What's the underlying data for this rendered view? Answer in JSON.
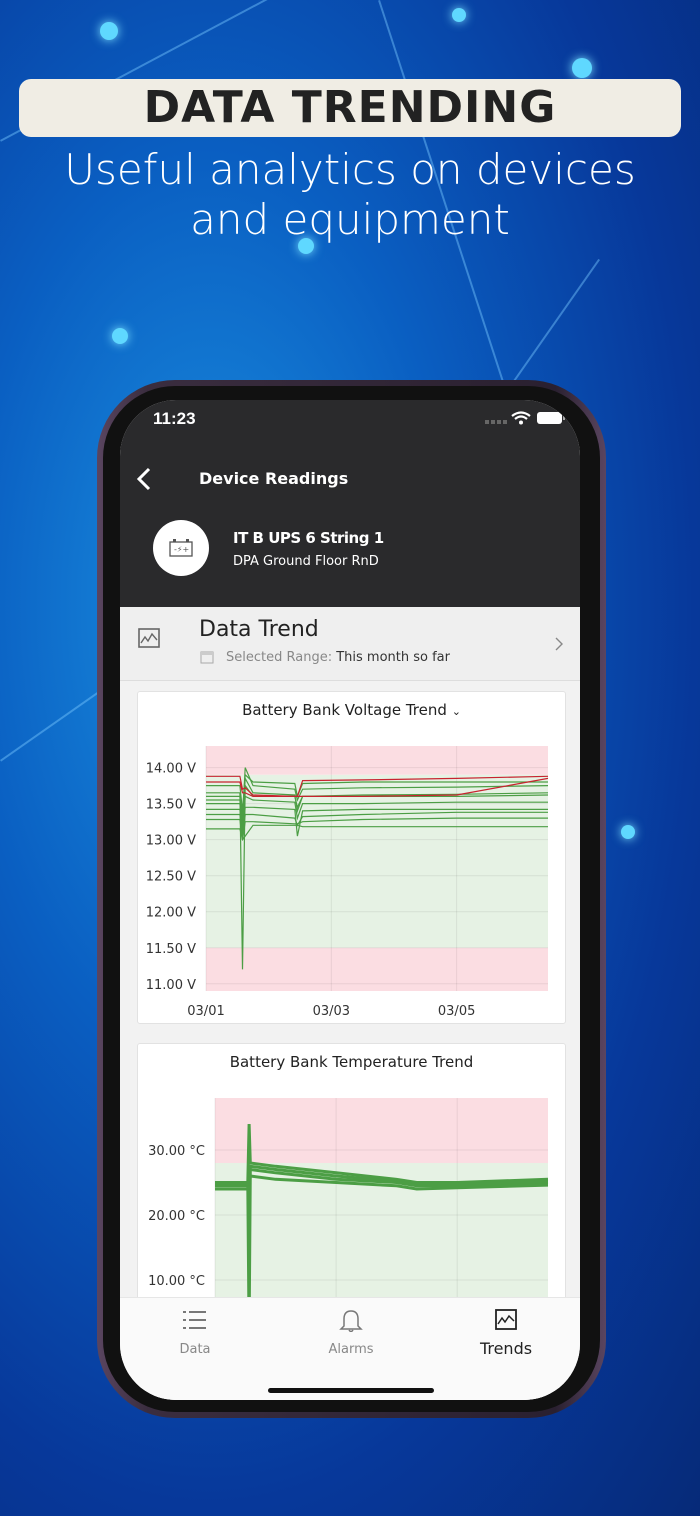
{
  "promo": {
    "headline": "DATA TRENDING",
    "subtitle_line1": "Useful analytics on devices",
    "subtitle_line2": "and equipment"
  },
  "status_bar": {
    "time": "11:23"
  },
  "header": {
    "title": "Device Readings",
    "device_name": "IT B UPS 6 String 1",
    "device_location": "DPA  Ground Floor RnD",
    "device_icon": "battery-icon"
  },
  "trend_row": {
    "title": "Data Trend",
    "range_label": "Selected Range:",
    "range_value": "This month so far"
  },
  "colors": {
    "header_bg": "#2a2a2c",
    "ok_band": "#e6f2e4",
    "alarm_band": "#fbdde2",
    "ok_line": "#4c9e45",
    "alarm_line": "#c8232f"
  },
  "chart_data": [
    {
      "type": "line",
      "title": "Battery Bank Voltage Trend",
      "has_dropdown": true,
      "ylabel": "",
      "xlabel": "",
      "ylim": [
        10.9,
        14.3
      ],
      "xlim": [
        "03/01 00:00",
        "03/06 11:00"
      ],
      "yticks": [
        "11.00 V",
        "11.50 V",
        "12.00 V",
        "12.50 V",
        "13.00 V",
        "13.50 V",
        "14.00 V"
      ],
      "ytick_values": [
        11,
        11.5,
        12,
        12.5,
        13,
        13.5,
        14
      ],
      "xticks": [
        "03/01",
        "03/03",
        "03/05"
      ],
      "grid": true,
      "bands": [
        {
          "from": 13.9,
          "to": 14.3,
          "status": "alarm"
        },
        {
          "from": 11.5,
          "to": 13.9,
          "status": "ok"
        },
        {
          "from": 10.9,
          "to": 11.5,
          "status": "alarm"
        }
      ],
      "x": [
        "03/01 00:00",
        "03/01 13:00",
        "03/01 14:00",
        "03/01 15:00",
        "03/01 18:00",
        "03/02 10:00",
        "03/02 11:00",
        "03/02 13:00",
        "03/03 12:00",
        "03/05 00:00",
        "03/06 11:00"
      ],
      "series": [
        {
          "status": "ok",
          "values": [
            13.65,
            13.65,
            11.2,
            13.75,
            13.6,
            13.6,
            13.45,
            13.6,
            13.62,
            13.63,
            13.65
          ]
        },
        {
          "status": "ok",
          "values": [
            13.6,
            13.6,
            13.3,
            14.0,
            13.75,
            13.7,
            13.55,
            13.7,
            13.72,
            13.73,
            13.75
          ]
        },
        {
          "status": "ok",
          "values": [
            13.55,
            13.55,
            13.2,
            13.85,
            13.65,
            13.62,
            13.4,
            13.6,
            13.6,
            13.6,
            13.62
          ]
        },
        {
          "status": "ok",
          "values": [
            13.5,
            13.5,
            13.1,
            13.6,
            13.55,
            13.52,
            13.3,
            13.5,
            13.5,
            13.52,
            13.52
          ]
        },
        {
          "status": "ok",
          "values": [
            13.42,
            13.42,
            13.05,
            13.45,
            13.45,
            13.42,
            13.05,
            13.4,
            13.42,
            13.42,
            13.42
          ]
        },
        {
          "status": "ok",
          "values": [
            13.35,
            13.35,
            13.0,
            13.35,
            13.35,
            13.3,
            13.2,
            13.32,
            13.35,
            13.38,
            13.38
          ]
        },
        {
          "status": "ok",
          "values": [
            13.28,
            13.28,
            13.0,
            13.25,
            13.25,
            13.22,
            13.22,
            13.25,
            13.28,
            13.3,
            13.3
          ]
        },
        {
          "status": "ok",
          "values": [
            13.15,
            13.15,
            13.0,
            13.05,
            13.2,
            13.2,
            13.2,
            13.18,
            13.18,
            13.18,
            13.18
          ]
        },
        {
          "status": "ok",
          "values": [
            13.75,
            13.75,
            13.4,
            13.9,
            13.8,
            13.78,
            13.6,
            13.78,
            13.8,
            13.8,
            13.8
          ]
        },
        {
          "status": "alarm",
          "values": [
            13.88,
            13.88,
            13.7,
            13.72,
            13.62,
            13.6,
            13.6,
            13.82,
            13.83,
            13.85,
            13.88
          ]
        },
        {
          "status": "alarm",
          "values": [
            13.8,
            13.8,
            13.65,
            13.65,
            13.6,
            13.6,
            13.6,
            13.6,
            13.6,
            13.62,
            13.85
          ]
        }
      ]
    },
    {
      "type": "line",
      "title": "Battery Bank Temperature Trend",
      "ylabel": "",
      "xlabel": "",
      "ylim": [
        0,
        38
      ],
      "xlim": [
        "03/01 00:00",
        "03/06 12:00"
      ],
      "yticks": [
        "10.00 °C",
        "20.00 °C",
        "30.00 °C"
      ],
      "ytick_values": [
        10,
        20,
        30
      ],
      "grid": true,
      "bands": [
        {
          "from": 28,
          "to": 38,
          "status": "alarm"
        },
        {
          "from": 0,
          "to": 28,
          "status": "ok"
        }
      ],
      "x": [
        "03/01 00:00",
        "03/01 13:00",
        "03/01 13:30",
        "03/01 14:00",
        "03/02 00:00",
        "03/03 00:00",
        "03/04 00:00",
        "03/04 08:00",
        "03/05 00:00",
        "03/06 12:00"
      ],
      "series": [
        {
          "status": "ok",
          "values": [
            25,
            25,
            34,
            28,
            27.5,
            26.5,
            25.5,
            25,
            25,
            25.5
          ]
        },
        {
          "status": "ok",
          "values": [
            24.5,
            24.5,
            2,
            27,
            26.5,
            25.5,
            25,
            24.5,
            24.5,
            25
          ]
        },
        {
          "status": "ok",
          "values": [
            24,
            24,
            24,
            26,
            25.5,
            25,
            24.5,
            24,
            24.2,
            24.6
          ]
        },
        {
          "status": "ok",
          "values": [
            24.8,
            24.8,
            25,
            27.5,
            27,
            26,
            25.2,
            24.7,
            24.8,
            25.2
          ]
        }
      ]
    }
  ],
  "bottom_nav": [
    {
      "label": "Data",
      "icon": "list-icon",
      "active": false
    },
    {
      "label": "Alarms",
      "icon": "bell-icon",
      "active": false
    },
    {
      "label": "Trends",
      "icon": "trend-icon",
      "active": true
    }
  ]
}
